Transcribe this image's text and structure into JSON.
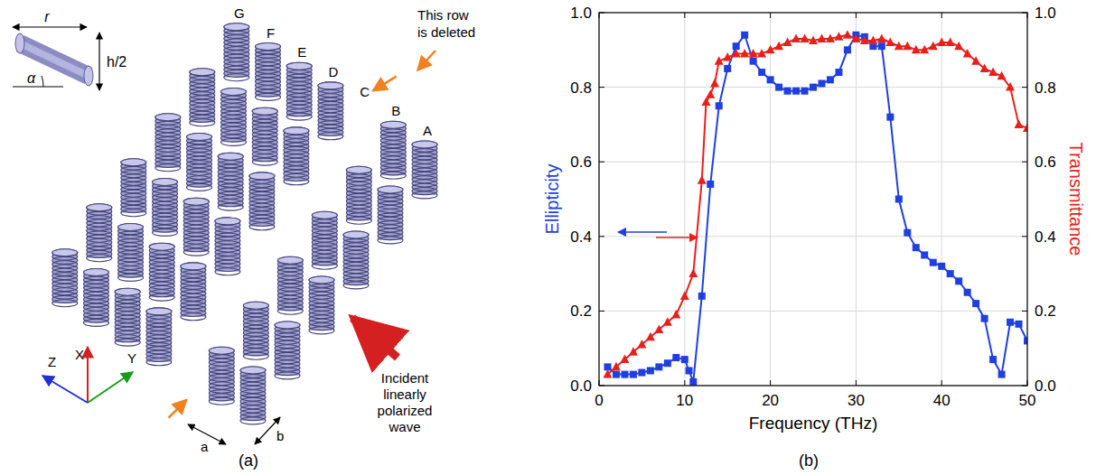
{
  "figure": {
    "panel_labels": [
      "(a)",
      "(b)"
    ]
  },
  "diagram": {
    "inset_labels": {
      "radius": "r",
      "height": "h/2",
      "angle": "α"
    },
    "rows": [
      "A",
      "B",
      "C",
      "D",
      "E",
      "F",
      "G"
    ],
    "deleted_row": "C",
    "deleted_note": [
      "This row",
      "is deleted"
    ],
    "incident_note": [
      "Incident",
      "linearly",
      "polarized",
      "wave"
    ],
    "axes": {
      "x": "X",
      "y": "Y",
      "z": "Z"
    },
    "spacing": {
      "a": "a",
      "b": "b"
    }
  },
  "chart_data": {
    "type": "line",
    "xlabel": "Frequency (THz)",
    "ylabel": "Ellipticity",
    "y2label": "Transmittance",
    "xlim": [
      0,
      50
    ],
    "xticks": [
      0,
      10,
      20,
      30,
      40,
      50
    ],
    "ylim": [
      0,
      1
    ],
    "yticks": [
      {
        "value": 0,
        "label": "0.0"
      },
      0.2,
      0.4,
      0.6,
      0.8,
      {
        "value": 1,
        "label": "1.0"
      }
    ],
    "y2lim": [
      0,
      1
    ],
    "y2ticks": [
      {
        "value": 0,
        "label": "0.0"
      },
      0.2,
      0.4,
      0.6,
      0.8,
      {
        "value": 1,
        "label": "1.0"
      }
    ],
    "grid": true,
    "series": [
      {
        "color": "#1f3fe0",
        "marker": "square",
        "line_style": "solid",
        "x": [
          1,
          2,
          3,
          4,
          5,
          6,
          7,
          8,
          9,
          10,
          10.5,
          11,
          12,
          13,
          14,
          15,
          16,
          17,
          18,
          19,
          20,
          21,
          22,
          23,
          24,
          25,
          26,
          27,
          28,
          29,
          30,
          31,
          32,
          33,
          34,
          35,
          36,
          37,
          38,
          39,
          40,
          41,
          42,
          43,
          44,
          45,
          46,
          47,
          48,
          49,
          50
        ],
        "values": [
          0.05,
          0.03,
          0.03,
          0.03,
          0.035,
          0.04,
          0.05,
          0.06,
          0.075,
          0.07,
          0.04,
          0.01,
          0.24,
          0.54,
          0.75,
          0.85,
          0.91,
          0.94,
          0.87,
          0.84,
          0.82,
          0.8,
          0.79,
          0.79,
          0.79,
          0.8,
          0.81,
          0.82,
          0.84,
          0.9,
          0.94,
          0.935,
          0.91,
          0.91,
          0.72,
          0.5,
          0.41,
          0.37,
          0.35,
          0.33,
          0.32,
          0.3,
          0.28,
          0.25,
          0.22,
          0.18,
          0.07,
          0.03,
          0.17,
          0.165,
          0.12
        ]
      },
      {
        "color": "#e8201c",
        "marker": "triangle",
        "line_style": "solid",
        "axis": "y2",
        "x": [
          1,
          2,
          3,
          4,
          5,
          6,
          7,
          8,
          9,
          10,
          11,
          12,
          12.5,
          13,
          13.5,
          14,
          15,
          16,
          17,
          18,
          19,
          20,
          21,
          22,
          23,
          24,
          25,
          26,
          27,
          28,
          29,
          30,
          31,
          32,
          33,
          34,
          35,
          36,
          37,
          38,
          39,
          40,
          41,
          42,
          43,
          44,
          45,
          46,
          47,
          48,
          49,
          50
        ],
        "values": [
          0.03,
          0.05,
          0.07,
          0.09,
          0.11,
          0.13,
          0.15,
          0.17,
          0.19,
          0.24,
          0.3,
          0.55,
          0.76,
          0.78,
          0.81,
          0.87,
          0.88,
          0.89,
          0.89,
          0.89,
          0.89,
          0.9,
          0.91,
          0.92,
          0.93,
          0.93,
          0.925,
          0.93,
          0.93,
          0.935,
          0.94,
          0.93,
          0.925,
          0.925,
          0.93,
          0.92,
          0.91,
          0.91,
          0.9,
          0.9,
          0.91,
          0.92,
          0.92,
          0.91,
          0.89,
          0.87,
          0.85,
          0.84,
          0.83,
          0.8,
          0.7,
          0.69
        ]
      }
    ]
  }
}
